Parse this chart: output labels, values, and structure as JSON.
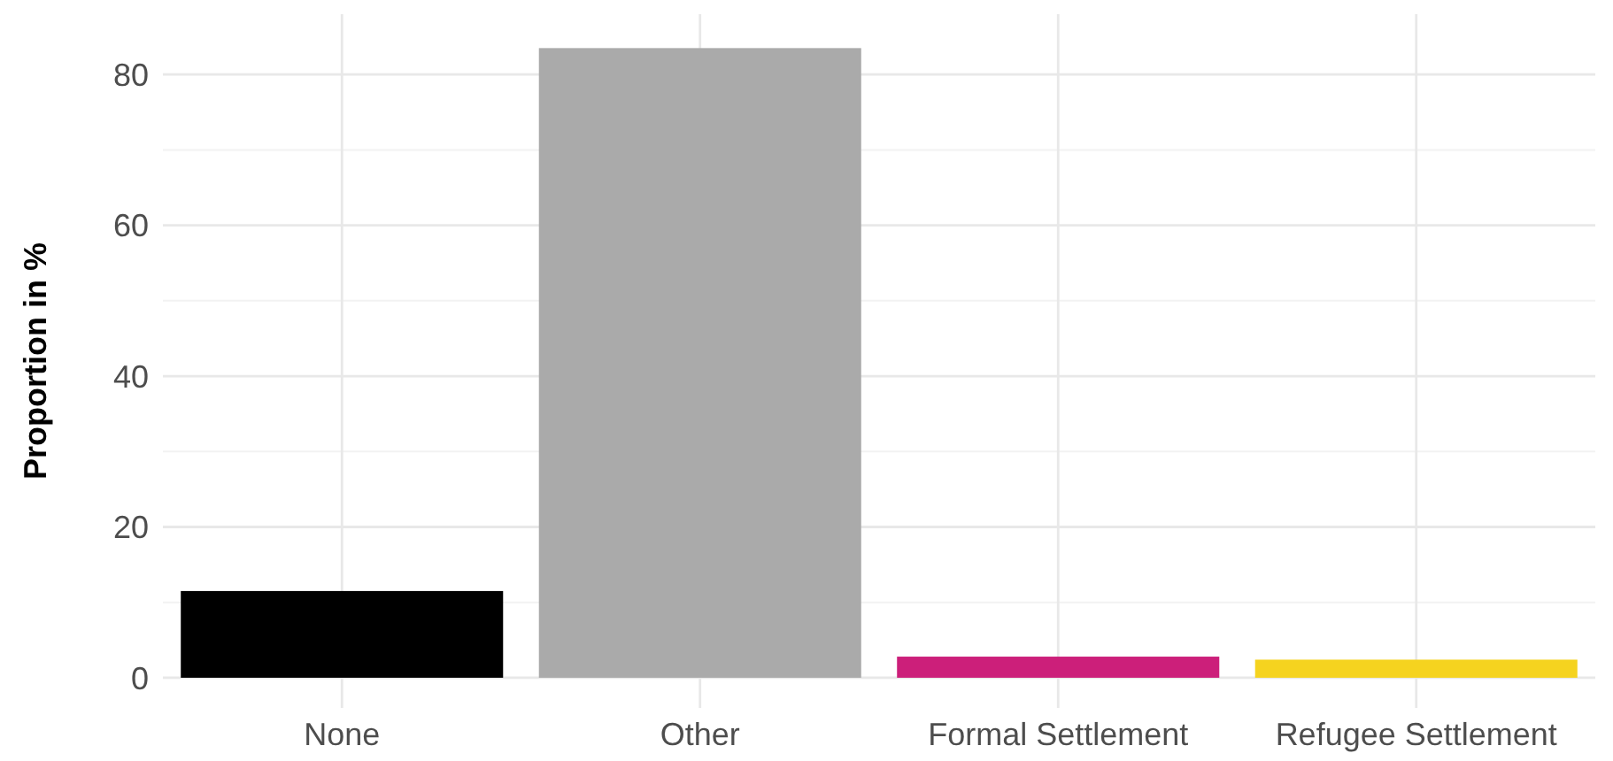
{
  "chart_data": {
    "type": "bar",
    "ylabel": "Proportion in %",
    "categories": [
      "None",
      "Other",
      "Formal Settlement",
      "Refugee Settlement"
    ],
    "values": [
      11.5,
      83.5,
      2.8,
      2.4
    ],
    "colors": [
      "#000000",
      "#aaaaaa",
      "#cc1f7a",
      "#f5d31f"
    ],
    "ylim": [
      -4,
      88
    ],
    "yticks": [
      0,
      20,
      40,
      60,
      80
    ],
    "grid": true
  }
}
